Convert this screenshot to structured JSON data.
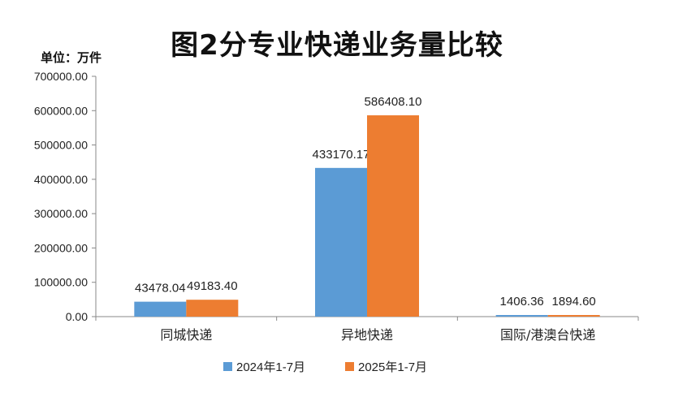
{
  "chart_data": {
    "type": "bar",
    "title": "图2分专业快递业务量比较",
    "unit_label": "单位：万件",
    "categories": [
      "同城快递",
      "异地快递",
      "国际/港澳台快递"
    ],
    "series": [
      {
        "name": "2024年1-7月",
        "color": "#5B9BD5",
        "values": [
          43478.04,
          433170.17,
          1406.36
        ],
        "labels": [
          "43478.04",
          "433170.17",
          "1406.36"
        ]
      },
      {
        "name": "2025年1-7月",
        "color": "#ED7D31",
        "values": [
          49183.4,
          586408.1,
          1894.6
        ],
        "labels": [
          "49183.40",
          "586408.10",
          "1894.60"
        ]
      }
    ],
    "ylim": [
      0,
      700000
    ],
    "yticks": [
      0,
      100000,
      200000,
      300000,
      400000,
      500000,
      600000,
      700000
    ],
    "ytick_labels": [
      "0.00",
      "100000.00",
      "200000.00",
      "300000.00",
      "400000.00",
      "500000.00",
      "600000.00",
      "700000.00"
    ],
    "legend_position": "bottom",
    "grid": false
  }
}
